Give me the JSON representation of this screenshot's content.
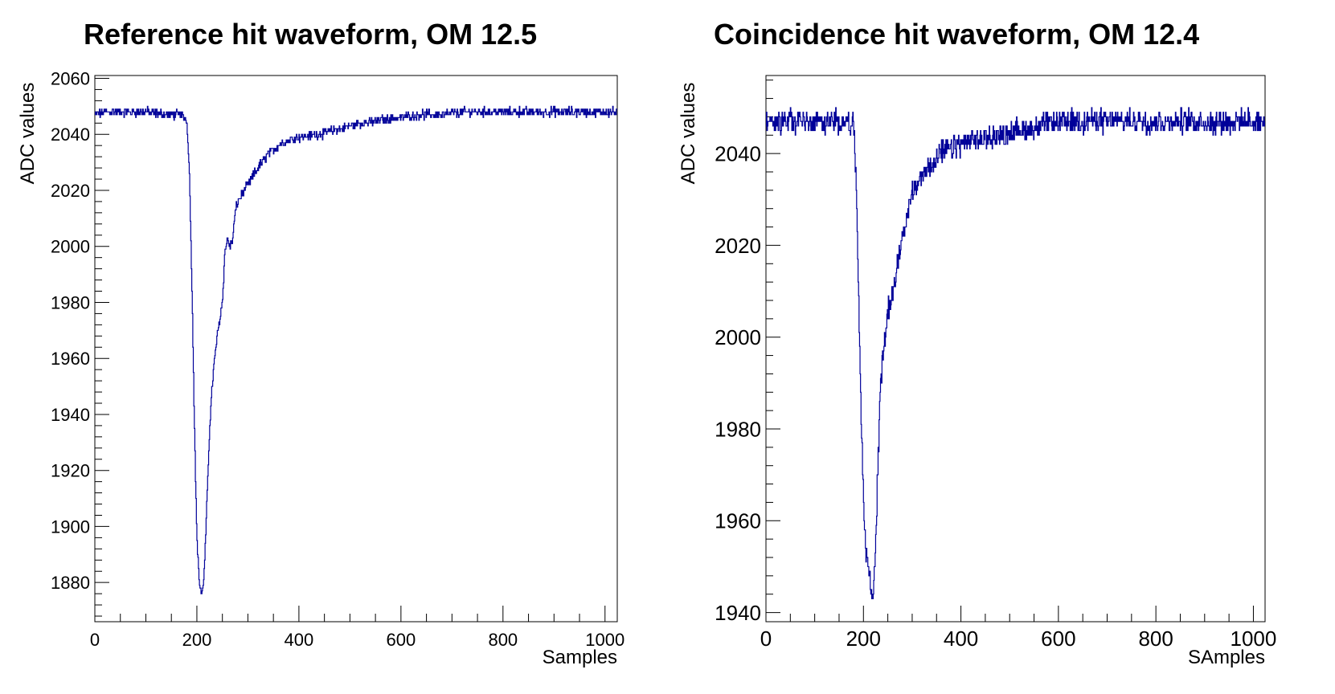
{
  "chart_data": [
    {
      "type": "line",
      "title": "Reference hit waveform, OM 12.5",
      "xlabel": "Samples",
      "ylabel": "ADC values",
      "xlim": [
        0,
        1024
      ],
      "ylim": [
        1866,
        2061
      ],
      "xticks": [
        0,
        200,
        400,
        600,
        800,
        1000
      ],
      "yticks": [
        1880,
        1900,
        1920,
        1940,
        1960,
        1980,
        2000,
        2020,
        2040,
        2060
      ],
      "color": "#000099",
      "grid": false,
      "legend": "none",
      "series": [
        {
          "x": [
            0,
            20,
            60,
            100,
            140,
            170,
            180,
            185,
            190,
            195,
            200,
            205,
            210,
            215,
            220,
            225,
            230,
            235,
            240,
            250,
            255,
            260,
            265,
            270,
            275,
            280,
            290,
            300,
            320,
            340,
            360,
            380,
            400,
            440,
            480,
            520,
            560,
            600,
            640,
            680,
            720,
            760,
            800,
            840,
            880,
            920,
            960,
            1000,
            1023
          ],
          "y": [
            2047,
            2048,
            2048,
            2048,
            2047,
            2047,
            2045,
            2030,
            1990,
            1940,
            1896,
            1880,
            1875,
            1885,
            1910,
            1935,
            1950,
            1960,
            1968,
            1980,
            1998,
            2003,
            2000,
            2002,
            2012,
            2016,
            2019,
            2022,
            2028,
            2033,
            2036,
            2038,
            2039,
            2040,
            2042,
            2044,
            2045,
            2046,
            2047,
            2047,
            2048,
            2048,
            2048,
            2048,
            2048,
            2048,
            2048,
            2048,
            2048
          ]
        }
      ]
    },
    {
      "type": "line",
      "title": "Coincidence hit waveform, OM 12.4",
      "xlabel": "SAmples",
      "ylabel": "ADC values",
      "xlim": [
        0,
        1024
      ],
      "ylim": [
        1938,
        2057
      ],
      "xticks": [
        0,
        200,
        400,
        600,
        800,
        1000
      ],
      "yticks": [
        1940,
        1960,
        1980,
        2000,
        2020,
        2040
      ],
      "color": "#000099",
      "grid": false,
      "legend": "none",
      "series": [
        {
          "x": [
            0,
            20,
            60,
            100,
            140,
            170,
            180,
            185,
            190,
            195,
            200,
            205,
            210,
            215,
            220,
            225,
            230,
            235,
            240,
            250,
            260,
            270,
            280,
            290,
            300,
            320,
            340,
            360,
            380,
            400,
            440,
            480,
            520,
            560,
            600,
            640,
            680,
            720,
            760,
            800,
            840,
            880,
            920,
            960,
            1000,
            1023
          ],
          "y": [
            2047,
            2047,
            2047,
            2047,
            2047,
            2047,
            2046,
            2035,
            2010,
            1985,
            1965,
            1953,
            1951,
            1945,
            1943,
            1955,
            1972,
            1990,
            1996,
            2005,
            2010,
            2016,
            2022,
            2027,
            2031,
            2035,
            2038,
            2040,
            2041,
            2042,
            2043,
            2044,
            2045,
            2046,
            2047,
            2047,
            2047,
            2047,
            2047,
            2047,
            2047,
            2047,
            2047,
            2047,
            2047,
            2047
          ]
        }
      ]
    }
  ]
}
